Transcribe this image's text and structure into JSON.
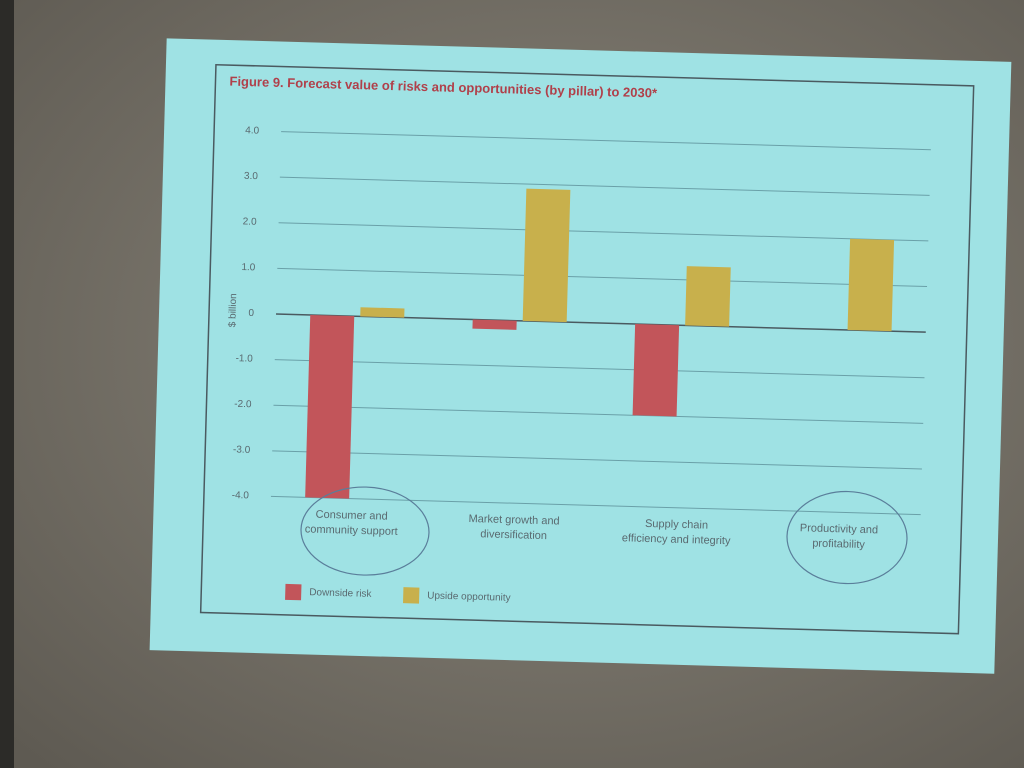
{
  "chart_data": {
    "type": "bar",
    "title": "Figure 9. Forecast value of risks and opportunities (by pillar) to 2030*",
    "y_label": "$ billion",
    "categories": [
      "Consumer and community support",
      "Market growth and diversification",
      "Supply chain efficiency and integrity",
      "Productivity and profitability"
    ],
    "series": [
      {
        "name": "Downside risk",
        "color": "#c2555a",
        "values": [
          -4.0,
          -0.2,
          -2.0,
          0
        ]
      },
      {
        "name": "Upside opportunity",
        "color": "#c8b04c",
        "values": [
          0.2,
          2.9,
          1.3,
          2.0
        ]
      }
    ],
    "ylim": [
      -4,
      4
    ],
    "yticks": [
      {
        "value": 4,
        "label": "4.0"
      },
      {
        "value": 3,
        "label": "3.0"
      },
      {
        "value": 2,
        "label": "2.0"
      },
      {
        "value": 1,
        "label": "1.0"
      },
      0,
      {
        "value": -1,
        "label": "-1.0"
      },
      {
        "value": -2,
        "label": "-2.0"
      },
      {
        "value": -3,
        "label": "-3.0"
      },
      {
        "value": -4,
        "label": "-4.0"
      }
    ],
    "grid": true,
    "legend": "bottom-left"
  }
}
